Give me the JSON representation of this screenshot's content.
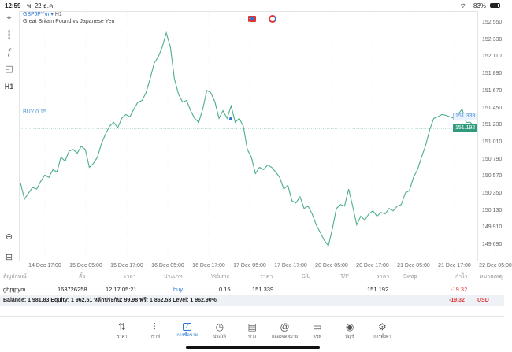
{
  "status": {
    "time": "12:59",
    "date": "พ. 22 ธ.ค.",
    "battery": "83%"
  },
  "chart": {
    "symbol": "GBPJPYm",
    "timeframe": "H1",
    "description": "Great Britain Pound vs Japanese Yen",
    "order_label": "BUY 0.15",
    "order_price": "151.339",
    "current_price": "151.192",
    "toolbar_timeframe": "H1"
  },
  "chart_data": {
    "type": "line",
    "title": "GBPJPYm • H1",
    "ylim": [
      149.6,
      152.62
    ],
    "yticks": [
      "152.550",
      "152.330",
      "152.110",
      "151.890",
      "151.670",
      "151.450",
      "151.230",
      "151.010",
      "150.790",
      "150.570",
      "150.350",
      "150.130",
      "149.910",
      "149.690"
    ],
    "xticks": [
      "14 Dec 17:00",
      "15 Dec 05:00",
      "15 Dec 17:00",
      "16 Dec 05:00",
      "16 Dec 17:00",
      "17 Dec 05:00",
      "17 Dec 17:00",
      "20 Dec 05:00",
      "20 Dec 17:00",
      "21 Dec 05:00",
      "21 Dec 17:00",
      "22 Dec 05:00"
    ],
    "series": [
      {
        "name": "close",
        "color": "#4caf86",
        "values": [
          150.49,
          150.28,
          150.36,
          150.43,
          150.41,
          150.51,
          150.59,
          150.56,
          150.66,
          150.63,
          150.82,
          150.77,
          150.9,
          150.92,
          150.87,
          150.96,
          150.92,
          150.69,
          150.74,
          150.82,
          151.0,
          151.12,
          151.22,
          151.27,
          151.2,
          151.32,
          151.37,
          151.34,
          151.44,
          151.53,
          151.55,
          151.65,
          151.83,
          152.03,
          152.11,
          152.24,
          152.42,
          152.24,
          151.83,
          151.63,
          151.53,
          151.55,
          151.42,
          151.32,
          151.27,
          151.44,
          151.68,
          151.65,
          151.53,
          151.32,
          151.42,
          151.32,
          151.48,
          151.27,
          151.32,
          151.22,
          150.92,
          150.82,
          150.61,
          150.69,
          150.66,
          150.72,
          150.69,
          150.63,
          150.56,
          150.41,
          150.46,
          150.26,
          150.23,
          150.31,
          150.16,
          150.19,
          150.09,
          149.95,
          149.85,
          149.75,
          149.68,
          149.9,
          150.16,
          150.21,
          150.19,
          150.41,
          150.19,
          149.95,
          150.06,
          150.01,
          150.09,
          150.13,
          150.06,
          150.11,
          150.09,
          150.16,
          150.13,
          150.19,
          150.21,
          150.36,
          150.39,
          150.56,
          150.66,
          150.82,
          150.97,
          151.17,
          151.32,
          151.34,
          151.37,
          151.36,
          151.34,
          151.32,
          151.37,
          151.44,
          151.27,
          151.27,
          151.22
        ]
      }
    ]
  },
  "table": {
    "headers": [
      "สัญลักษณ์",
      "ตั๋ว",
      "เวลา",
      "ประเภท",
      "Volume",
      "ราคา",
      "S/L",
      "T/P",
      "ราคา",
      "Swap",
      "กำไร",
      "หมายเหตุ"
    ],
    "row": {
      "symbol": "gbpjpym",
      "ticket": "163726258",
      "time": "12.17 05:21",
      "type": "buy",
      "volume": "0.15",
      "open_price": "151.339",
      "sl": "",
      "tp": "",
      "price": "151.192",
      "swap": "",
      "profit": "-19.32",
      "comment": ""
    },
    "balance": "Balance: 1 981.83 Equity: 1 962.51 หลักประกัน: 99.98 ฟรี: 1 862.53 Level: 1 962.90%",
    "total_profit": "-19.32",
    "currency": "USD"
  },
  "nav": [
    {
      "label": "ราคา",
      "icon": "quotes-icon"
    },
    {
      "label": "กราฟ",
      "icon": "chart-icon"
    },
    {
      "label": "การซื้อขาย",
      "icon": "trade-icon"
    },
    {
      "label": "ประวัติ",
      "icon": "history-icon"
    },
    {
      "label": "ข่าว",
      "icon": "news-icon"
    },
    {
      "label": "กล่องจดหมาย",
      "icon": "mailbox-icon"
    },
    {
      "label": "แชท",
      "icon": "chat-icon"
    },
    {
      "label": "บัญชี",
      "icon": "account-icon"
    },
    {
      "label": "การตั้งค่า",
      "icon": "settings-icon"
    }
  ]
}
